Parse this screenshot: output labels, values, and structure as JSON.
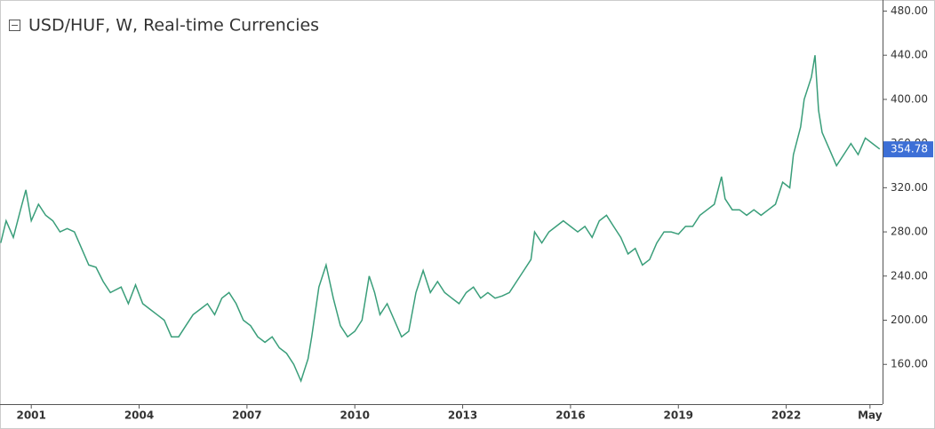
{
  "chart_data": {
    "type": "line",
    "title": "USD/HUF, W, Real-time Currencies",
    "last_price": {
      "value": 354.78,
      "label": "354.78"
    },
    "color": "#3a9e7a",
    "last_price_color": "#3d6fd6",
    "x": [
      2000.15,
      2000.3,
      2000.5,
      2000.7,
      2000.85,
      2001.0,
      2001.2,
      2001.4,
      2001.6,
      2001.8,
      2002.0,
      2002.2,
      2002.4,
      2002.6,
      2002.8,
      2003.0,
      2003.2,
      2003.5,
      2003.7,
      2003.9,
      2004.1,
      2004.3,
      2004.5,
      2004.7,
      2004.9,
      2005.1,
      2005.3,
      2005.5,
      2005.7,
      2005.9,
      2006.1,
      2006.3,
      2006.5,
      2006.7,
      2006.9,
      2007.1,
      2007.3,
      2007.5,
      2007.7,
      2007.9,
      2008.1,
      2008.3,
      2008.5,
      2008.7,
      2008.8,
      2009.0,
      2009.2,
      2009.4,
      2009.6,
      2009.8,
      2010.0,
      2010.2,
      2010.4,
      2010.55,
      2010.7,
      2010.9,
      2011.1,
      2011.3,
      2011.5,
      2011.7,
      2011.9,
      2012.1,
      2012.3,
      2012.5,
      2012.7,
      2012.9,
      2013.1,
      2013.3,
      2013.5,
      2013.7,
      2013.9,
      2014.1,
      2014.3,
      2014.5,
      2014.7,
      2014.9,
      2015.0,
      2015.2,
      2015.4,
      2015.6,
      2015.8,
      2016.0,
      2016.2,
      2016.4,
      2016.6,
      2016.8,
      2017.0,
      2017.2,
      2017.4,
      2017.6,
      2017.8,
      2018.0,
      2018.2,
      2018.4,
      2018.6,
      2018.8,
      2019.0,
      2019.2,
      2019.4,
      2019.6,
      2019.8,
      2020.0,
      2020.2,
      2020.3,
      2020.5,
      2020.7,
      2020.9,
      2021.1,
      2021.3,
      2021.5,
      2021.7,
      2021.9,
      2022.1,
      2022.2,
      2022.4,
      2022.5,
      2022.7,
      2022.8,
      2022.9,
      2023.0,
      2023.2,
      2023.4,
      2023.6,
      2023.8,
      2024.0,
      2024.2,
      2024.4,
      2024.6
    ],
    "values": [
      270,
      290,
      275,
      300,
      318,
      290,
      305,
      295,
      290,
      280,
      283,
      280,
      265,
      250,
      248,
      235,
      225,
      230,
      215,
      232,
      215,
      210,
      205,
      200,
      185,
      185,
      195,
      205,
      210,
      215,
      205,
      220,
      225,
      215,
      200,
      195,
      185,
      180,
      185,
      175,
      170,
      160,
      145,
      165,
      185,
      230,
      250,
      220,
      195,
      185,
      190,
      200,
      240,
      225,
      205,
      215,
      200,
      185,
      190,
      225,
      245,
      225,
      235,
      225,
      220,
      215,
      225,
      230,
      220,
      225,
      220,
      222,
      225,
      235,
      245,
      255,
      280,
      270,
      280,
      285,
      290,
      285,
      280,
      285,
      275,
      290,
      295,
      285,
      275,
      260,
      265,
      250,
      255,
      270,
      280,
      280,
      278,
      285,
      285,
      295,
      300,
      305,
      330,
      310,
      300,
      300,
      295,
      300,
      295,
      300,
      305,
      325,
      320,
      350,
      375,
      400,
      420,
      440,
      390,
      370,
      355,
      340,
      350,
      360,
      350,
      365,
      360,
      355
    ],
    "xlim": [
      2000.13,
      2024.68
    ],
    "ylim": [
      124,
      486
    ],
    "xticks": [
      2001,
      2004,
      2007,
      2010,
      2013,
      2016,
      2019,
      2022,
      {
        "value": 2024.33,
        "label": "May"
      }
    ],
    "yticks": [
      {
        "value": 160,
        "label": "160.00"
      },
      {
        "value": 200,
        "label": "200.00"
      },
      {
        "value": 240,
        "label": "240.00"
      },
      {
        "value": 280,
        "label": "280.00"
      },
      {
        "value": 320,
        "label": "320.00"
      },
      {
        "value": 360,
        "label": "360.00"
      },
      {
        "value": 400,
        "label": "400.00"
      },
      {
        "value": 440,
        "label": "440.00"
      },
      {
        "value": 480,
        "label": "480.00"
      }
    ]
  }
}
